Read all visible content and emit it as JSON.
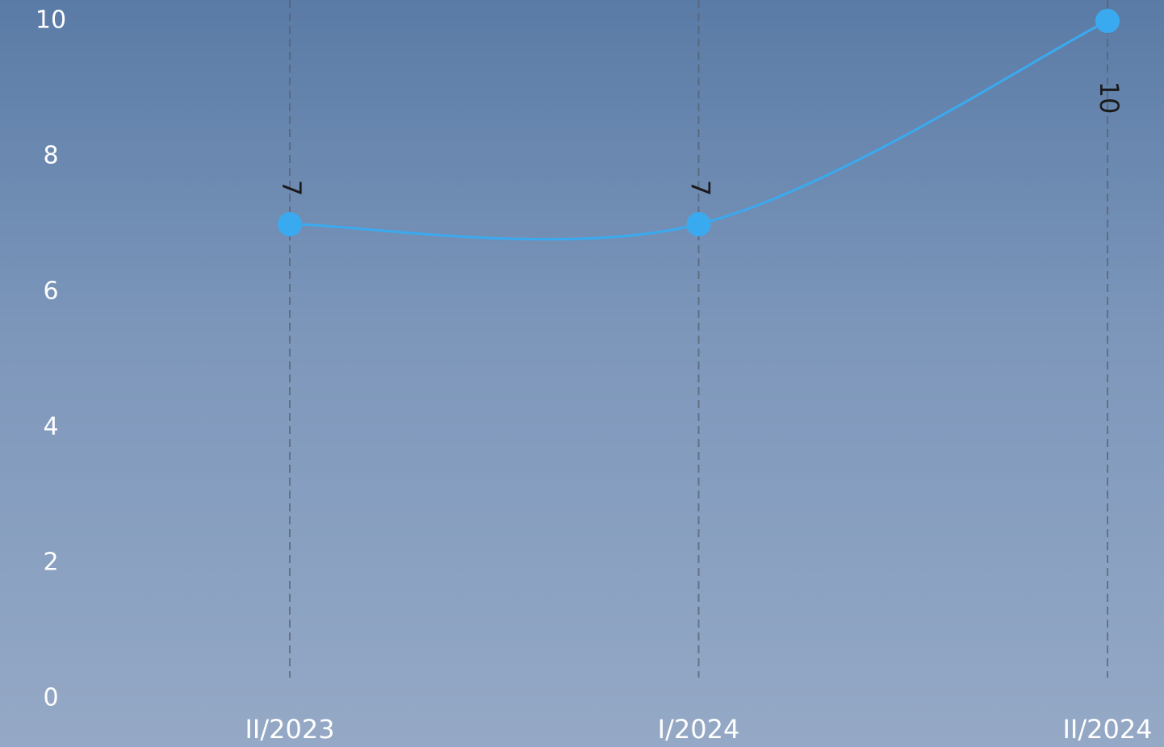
{
  "chart_data": {
    "type": "line",
    "categories": [
      "II/2023",
      "I/2024",
      "II/2024"
    ],
    "values": [
      7,
      7,
      10
    ],
    "value_color": "#3aaaf0",
    "ylim": [
      0,
      10
    ],
    "yticks": [
      0,
      2,
      4,
      6,
      8,
      10
    ]
  }
}
